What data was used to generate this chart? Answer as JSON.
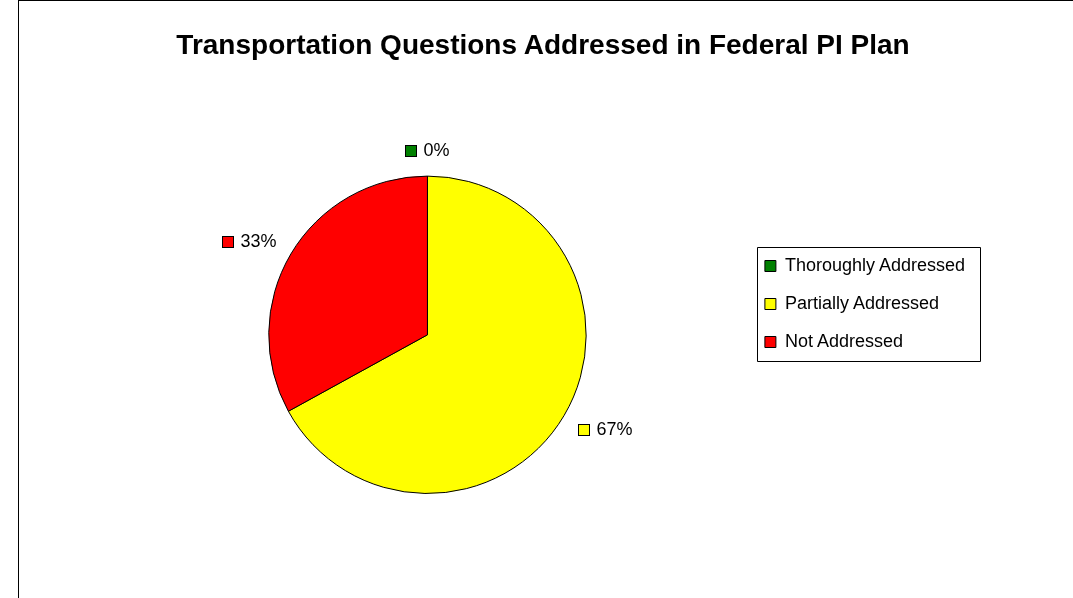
{
  "chart_data": {
    "type": "pie",
    "title": "Transportation Questions Addressed in Federal PI Plan",
    "categories": [
      "Thoroughly Addressed",
      "Partially Addressed",
      "Not Addressed"
    ],
    "values": [
      0,
      67,
      33
    ],
    "colors": [
      "#008000",
      "#ffff00",
      "#ff0000"
    ],
    "value_labels": [
      "0%",
      "67%",
      "33%"
    ],
    "legend": "right"
  }
}
